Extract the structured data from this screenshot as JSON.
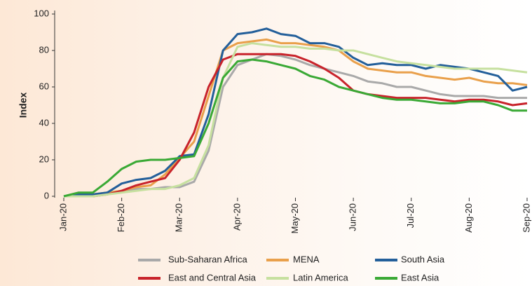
{
  "chart_data": {
    "type": "line",
    "y_label": "Index",
    "categories": [
      "Jan-20",
      null,
      null,
      null,
      "Feb-20",
      null,
      null,
      null,
      "Mar-20",
      null,
      null,
      null,
      "Apr-20",
      null,
      null,
      null,
      "May-20",
      null,
      null,
      null,
      "Jun-20",
      null,
      null,
      null,
      "Jul-20",
      null,
      null,
      null,
      "Aug-20",
      null,
      null,
      null,
      "Sep-20"
    ],
    "ylim": [
      0,
      100
    ],
    "yticks": [
      0,
      20,
      40,
      60,
      80,
      100
    ],
    "grid": false,
    "legend": "bottom",
    "series": [
      {
        "name": "Sub-Saharan Africa",
        "color": "#a9a9a9",
        "values": [
          0,
          0,
          1,
          2,
          3,
          4,
          4,
          5,
          5,
          8,
          25,
          60,
          72,
          75,
          78,
          77,
          75,
          72,
          70,
          68,
          66,
          63,
          62,
          60,
          60,
          58,
          56,
          55,
          55,
          55,
          54,
          54,
          54
        ]
      },
      {
        "name": "MENA",
        "color": "#e9a04b",
        "values": [
          0,
          0,
          1,
          2,
          3,
          5,
          6,
          12,
          21,
          30,
          55,
          80,
          84,
          85,
          86,
          84,
          84,
          83,
          82,
          80,
          74,
          70,
          69,
          68,
          68,
          66,
          65,
          64,
          65,
          63,
          62,
          62,
          61
        ]
      },
      {
        "name": "South Asia",
        "color": "#235f9a",
        "values": [
          0,
          1,
          1,
          2,
          7,
          9,
          10,
          14,
          22,
          23,
          45,
          80,
          89,
          90,
          92,
          89,
          88,
          84,
          84,
          82,
          76,
          72,
          73,
          72,
          72,
          70,
          72,
          71,
          70,
          68,
          66,
          58,
          60
        ]
      },
      {
        "name": "East and Central Asia",
        "color": "#c8232b",
        "values": [
          0,
          0,
          0,
          1,
          3,
          6,
          8,
          10,
          20,
          35,
          60,
          75,
          78,
          78,
          78,
          78,
          77,
          74,
          70,
          65,
          58,
          56,
          55,
          54,
          54,
          54,
          53,
          52,
          53,
          53,
          52,
          50,
          51
        ]
      },
      {
        "name": "Latin America",
        "color": "#c6e09f",
        "values": [
          0,
          0,
          0,
          1,
          2,
          3,
          4,
          4,
          6,
          10,
          28,
          65,
          82,
          84,
          83,
          82,
          82,
          81,
          81,
          80,
          80,
          78,
          76,
          74,
          73,
          72,
          71,
          70,
          70,
          70,
          70,
          69,
          68
        ]
      },
      {
        "name": "East Asia",
        "color": "#3aa935",
        "values": [
          0,
          2,
          2,
          8,
          15,
          19,
          20,
          20,
          21,
          22,
          40,
          65,
          74,
          75,
          74,
          72,
          70,
          66,
          64,
          60,
          58,
          56,
          54,
          53,
          53,
          52,
          51,
          51,
          52,
          52,
          50,
          47,
          47
        ]
      }
    ]
  }
}
